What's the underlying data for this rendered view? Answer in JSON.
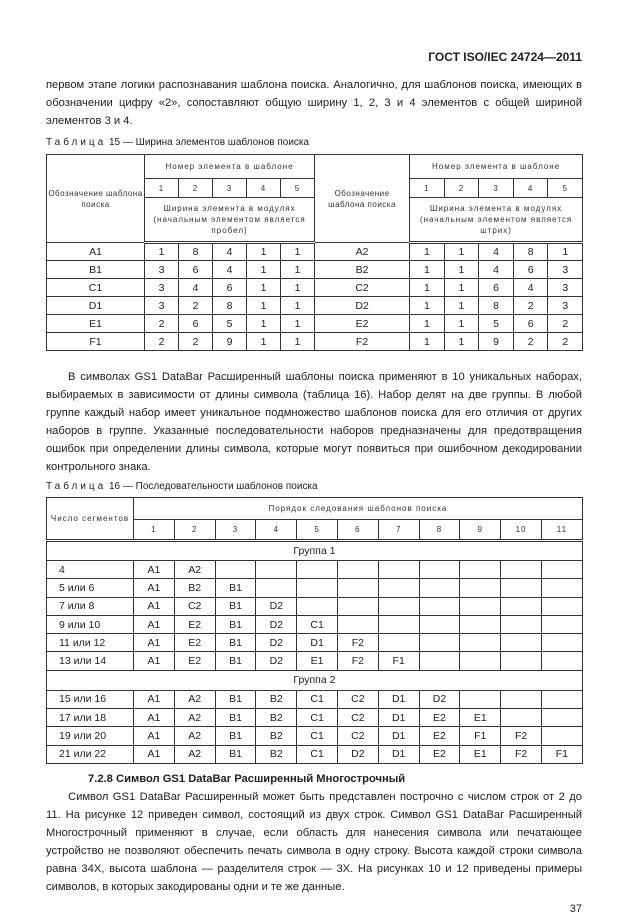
{
  "header": "ГОСТ ISO/IEC 24724—2011",
  "intro": "первом этапе логики распознавания шаблона поиска. Аналогично, для шаблонов поиска, имеющих в обозначении цифру «2», сопоставляют общую ширину 1, 2, 3 и 4 элементов с общей шириной элементов 3 и 4.",
  "table15": {
    "caption_prefix": "Таблица",
    "caption_rest": " 15 — Ширина элементов шаблонов поиска",
    "col_label": "Обозначение шаблона поиска",
    "num_header": "Номер элемента в шаблоне",
    "nums": [
      "1",
      "2",
      "3",
      "4",
      "5"
    ],
    "width_left": "Ширина элемента в модулях (начальным элементом является пробел)",
    "width_right": "Ширина элемента в модулях (начальным элементом является штрих)",
    "rows": [
      [
        "A1",
        "1",
        "8",
        "4",
        "1",
        "1",
        "A2",
        "1",
        "1",
        "4",
        "8",
        "1"
      ],
      [
        "B1",
        "3",
        "6",
        "4",
        "1",
        "1",
        "B2",
        "1",
        "1",
        "4",
        "6",
        "3"
      ],
      [
        "C1",
        "3",
        "4",
        "6",
        "1",
        "1",
        "C2",
        "1",
        "1",
        "6",
        "4",
        "3"
      ],
      [
        "D1",
        "3",
        "2",
        "8",
        "1",
        "1",
        "D2",
        "1",
        "1",
        "8",
        "2",
        "3"
      ],
      [
        "E1",
        "2",
        "6",
        "5",
        "1",
        "1",
        "E2",
        "1",
        "1",
        "5",
        "6",
        "2"
      ],
      [
        "F1",
        "2",
        "2",
        "9",
        "1",
        "1",
        "F2",
        "1",
        "1",
        "9",
        "2",
        "2"
      ]
    ]
  },
  "para2": "В символах GS1 DataBar Расширенный шаблоны поиска применяют в 10 уникальных наборах, выбираемых в зависимости от длины символа (таблица 16). Набор делят на две группы. В любой группе каждый набор имеет уникальное подмножество шаблонов поиска для его отличия от других наборов в группе. Указанные последовательности наборов предназначены для предотвращения ошибок при определении длины символа, которые могут появиться при ошибочном декодировании контрольного знака.",
  "table16": {
    "caption_prefix": "Таблица",
    "caption_rest": " 16 — Последовательности шаблонов поиска",
    "col_label": "Число сегментов",
    "order_header": "Порядок следования шаблонов поиска",
    "nums": [
      "1",
      "2",
      "3",
      "4",
      "5",
      "6",
      "7",
      "8",
      "9",
      "10",
      "11"
    ],
    "group1": "Группа 1",
    "group1_rows": [
      [
        "4",
        "A1",
        "A2",
        "",
        "",
        "",
        "",
        "",
        "",
        "",
        "",
        ""
      ],
      [
        "5 или 6",
        "A1",
        "B2",
        "B1",
        "",
        "",
        "",
        "",
        "",
        "",
        "",
        ""
      ],
      [
        "7 или 8",
        "A1",
        "C2",
        "B1",
        "D2",
        "",
        "",
        "",
        "",
        "",
        "",
        ""
      ],
      [
        "9 или 10",
        "A1",
        "E2",
        "B1",
        "D2",
        "C1",
        "",
        "",
        "",
        "",
        "",
        ""
      ],
      [
        "11 или 12",
        "A1",
        "E2",
        "B1",
        "D2",
        "D1",
        "F2",
        "",
        "",
        "",
        "",
        ""
      ],
      [
        "13 или 14",
        "A1",
        "E2",
        "B1",
        "D2",
        "E1",
        "F2",
        "F1",
        "",
        "",
        "",
        ""
      ]
    ],
    "group2": "Группа 2",
    "group2_rows": [
      [
        "15 или 16",
        "A1",
        "A2",
        "B1",
        "B2",
        "C1",
        "C2",
        "D1",
        "D2",
        "",
        "",
        ""
      ],
      [
        "17 или 18",
        "A1",
        "A2",
        "B1",
        "B2",
        "C1",
        "C2",
        "D1",
        "E2",
        "E1",
        "",
        ""
      ],
      [
        "19 или 20",
        "A1",
        "A2",
        "B1",
        "B2",
        "C1",
        "C2",
        "D1",
        "E2",
        "F1",
        "F2",
        ""
      ],
      [
        "21 или 22",
        "A1",
        "A2",
        "B1",
        "B2",
        "C1",
        "D2",
        "D1",
        "E2",
        "E1",
        "F2",
        "F1"
      ]
    ]
  },
  "section_title": "7.2.8 Символ GS1 DataBar Расширенный Многострочный",
  "para3": "Символ GS1 DataBar Расширенный может быть представлен построчно с числом строк от 2 до 11. На рисунке 12 приведен символ, состоящий из двух строк. Символ GS1 DataBar Расширенный Многострочный применяют в случае, если область для нанесения символа или печатающее устройство не позволяют обеспечить печать символа в одну строку. Высота каждой строки символа равна 34X, высота шаблона — разделителя строк — 3X. На рисунках 10 и 12 приведены примеры символов, в которых закодированы одни и те же данные.",
  "page_number": "37"
}
